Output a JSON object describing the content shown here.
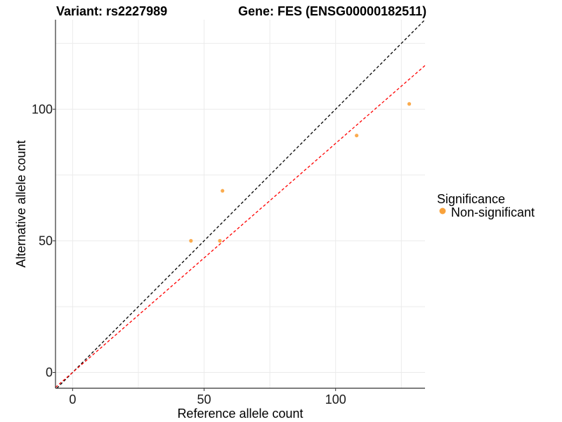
{
  "chart_data": {
    "type": "scatter",
    "title_left": "Variant: rs2227989",
    "title_right": "Gene: FES (ENSG00000182511)",
    "xlabel": "Reference allele count",
    "ylabel": "Alternative allele count",
    "xlim": [
      -6.5,
      134
    ],
    "ylim": [
      -6,
      134
    ],
    "xticks": [
      0,
      50,
      100
    ],
    "yticks": [
      0,
      50,
      100
    ],
    "grid": true,
    "series": [
      {
        "name": "Non-significant",
        "color": "#f9a23b",
        "points": [
          {
            "x": 45,
            "y": 50
          },
          {
            "x": 56,
            "y": 50
          },
          {
            "x": 57,
            "y": 69
          },
          {
            "x": 108,
            "y": 90
          },
          {
            "x": 128,
            "y": 102
          }
        ]
      }
    ],
    "reference_lines": [
      {
        "name": "identity",
        "color": "#000000",
        "slope": 1,
        "intercept": 0
      },
      {
        "name": "fit",
        "color": "#ff0000",
        "slope": 0.87,
        "intercept": 0
      }
    ],
    "legend": {
      "title": "Significance",
      "position": "right",
      "entries": [
        {
          "label": "Non-significant",
          "color": "#f9a23b"
        }
      ]
    }
  }
}
